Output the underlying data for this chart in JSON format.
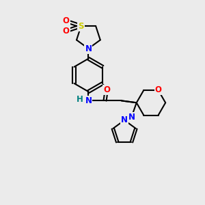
{
  "background_color": "#ebebeb",
  "bond_color": "#000000",
  "atom_colors": {
    "N": "#0000ff",
    "O": "#ff0000",
    "S": "#cccc00",
    "H": "#008080",
    "C": "#000000"
  },
  "figsize": [
    3.0,
    3.0
  ],
  "dpi": 100
}
